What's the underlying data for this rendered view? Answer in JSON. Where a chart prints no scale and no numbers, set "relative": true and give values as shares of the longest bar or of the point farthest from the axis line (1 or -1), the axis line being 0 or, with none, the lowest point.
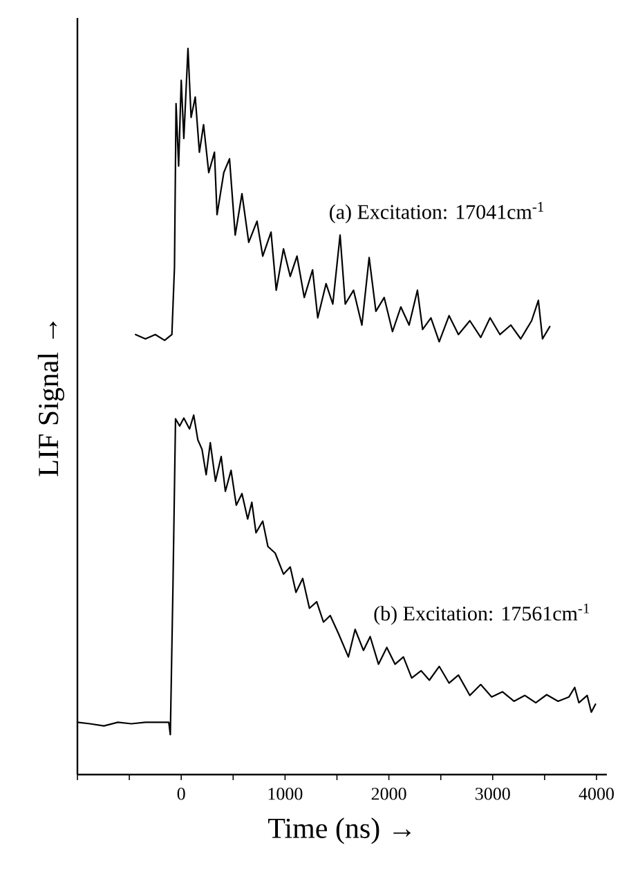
{
  "chart_data": {
    "type": "line",
    "relative": true,
    "xlabel": "Time (ns) →",
    "ylabel": "LIF Signal →",
    "xlim": [
      -1000,
      4100
    ],
    "xticks": [
      {
        "value": -1000,
        "label": null
      },
      {
        "value": -500,
        "label": null
      },
      0,
      {
        "value": 500,
        "label": null
      },
      1000,
      {
        "value": 1500,
        "label": null
      },
      2000,
      {
        "value": 2500,
        "label": null
      },
      3000,
      {
        "value": 3500,
        "label": null
      },
      4000
    ],
    "series": [
      {
        "name": "(a)  Excitation: 17041cm$^{-1}$",
        "color": "#000000",
        "x": [
          -440,
          -345,
          -250,
          -160,
          -90,
          -65,
          -50,
          -25,
          0,
          25,
          65,
          95,
          135,
          175,
          215,
          265,
          320,
          345,
          410,
          465,
          520,
          585,
          650,
          730,
          785,
          865,
          915,
          985,
          1050,
          1115,
          1185,
          1265,
          1315,
          1395,
          1460,
          1530,
          1580,
          1660,
          1740,
          1810,
          1875,
          1955,
          2035,
          2115,
          2195,
          2275,
          2325,
          2405,
          2485,
          2580,
          2670,
          2780,
          2885,
          2975,
          3070,
          3175,
          3270,
          3375,
          3440,
          3480,
          3550
        ],
        "values": [
          0.606,
          0.6,
          0.606,
          0.598,
          0.606,
          0.699,
          0.924,
          0.838,
          0.956,
          0.876,
          1.0,
          0.905,
          0.933,
          0.857,
          0.895,
          0.829,
          0.857,
          0.771,
          0.829,
          0.848,
          0.743,
          0.8,
          0.733,
          0.762,
          0.714,
          0.747,
          0.667,
          0.724,
          0.686,
          0.714,
          0.657,
          0.695,
          0.629,
          0.676,
          0.648,
          0.743,
          0.648,
          0.667,
          0.619,
          0.712,
          0.638,
          0.657,
          0.61,
          0.644,
          0.619,
          0.667,
          0.613,
          0.629,
          0.596,
          0.632,
          0.606,
          0.625,
          0.602,
          0.629,
          0.606,
          0.619,
          0.6,
          0.625,
          0.653,
          0.6,
          0.617
        ]
      },
      {
        "name": "(b)  Excitation: 17561cm$^{-1}$",
        "color": "#000000",
        "x": [
          -1000,
          -880,
          -745,
          -610,
          -480,
          -345,
          -215,
          -120,
          -105,
          -80,
          -55,
          -15,
          25,
          80,
          120,
          160,
          200,
          240,
          280,
          330,
          385,
          425,
          480,
          530,
          585,
          640,
          680,
          720,
          785,
          835,
          905,
          985,
          1050,
          1105,
          1170,
          1235,
          1305,
          1370,
          1435,
          1515,
          1610,
          1675,
          1755,
          1820,
          1900,
          1980,
          2060,
          2140,
          2220,
          2310,
          2390,
          2485,
          2580,
          2670,
          2780,
          2885,
          2990,
          3095,
          3205,
          3310,
          3415,
          3520,
          3630,
          3735,
          3790,
          3830,
          3910,
          3950,
          3990
        ],
        "values": [
          0.072,
          0.07,
          0.067,
          0.072,
          0.07,
          0.072,
          0.072,
          0.072,
          0.055,
          0.257,
          0.49,
          0.48,
          0.491,
          0.476,
          0.495,
          0.461,
          0.448,
          0.413,
          0.457,
          0.404,
          0.438,
          0.39,
          0.419,
          0.371,
          0.387,
          0.352,
          0.375,
          0.333,
          0.349,
          0.314,
          0.305,
          0.276,
          0.286,
          0.251,
          0.27,
          0.229,
          0.238,
          0.21,
          0.219,
          0.194,
          0.162,
          0.2,
          0.171,
          0.19,
          0.152,
          0.175,
          0.152,
          0.162,
          0.133,
          0.143,
          0.13,
          0.149,
          0.126,
          0.137,
          0.109,
          0.124,
          0.107,
          0.114,
          0.101,
          0.109,
          0.099,
          0.11,
          0.101,
          0.107,
          0.12,
          0.099,
          0.109,
          0.086,
          0.097
        ]
      }
    ]
  }
}
